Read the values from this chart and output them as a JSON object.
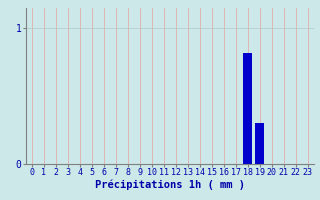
{
  "hours": [
    0,
    1,
    2,
    3,
    4,
    5,
    6,
    7,
    8,
    9,
    10,
    11,
    12,
    13,
    14,
    15,
    16,
    17,
    18,
    19,
    20,
    21,
    22,
    23
  ],
  "precipitation": [
    0,
    0,
    0,
    0,
    0,
    0,
    0,
    0,
    0,
    0,
    0,
    0,
    0,
    0,
    0,
    0,
    0,
    0,
    0.82,
    0.3,
    0,
    0,
    0,
    0
  ],
  "bar_color": "#0000cc",
  "background_color": "#cce8e8",
  "grid_color_vertical": "#e8a0a0",
  "grid_color_horizontal": "#b0c8c8",
  "xlabel": "Précipitations 1h ( mm )",
  "xlabel_color": "#0000aa",
  "xlabel_fontsize": 7.5,
  "tick_color": "#0000aa",
  "tick_fontsize": 6,
  "ytick_fontsize": 7,
  "yticks": [
    0,
    1
  ],
  "ylim": [
    0,
    1.15
  ],
  "xlim": [
    -0.5,
    23.5
  ]
}
